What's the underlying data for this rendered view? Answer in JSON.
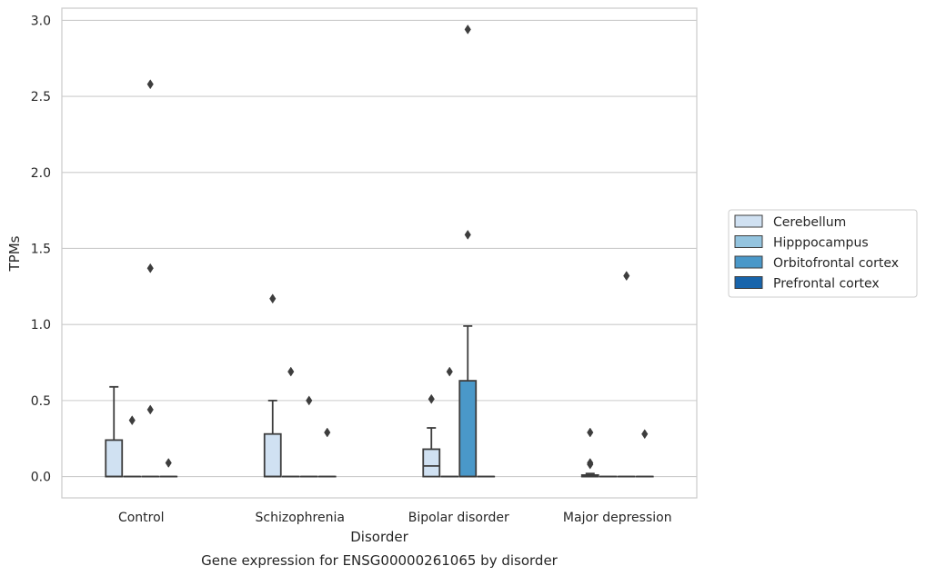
{
  "chart_data": {
    "type": "box",
    "title": "",
    "caption": "Gene expression for ENSG00000261065 by disorder",
    "xlabel": "Disorder",
    "ylabel": "TPMs",
    "ylim": [
      -0.14,
      3.08
    ],
    "yticks": [
      0.0,
      0.5,
      1.0,
      1.5,
      2.0,
      2.5,
      3.0
    ],
    "ytick_labels": [
      "0.0",
      "0.5",
      "1.0",
      "1.5",
      "2.0",
      "2.5",
      "3.0"
    ],
    "categories": [
      "Control",
      "Schizophrenia",
      "Bipolar disorder",
      "Major depression"
    ],
    "grid": "horizontal",
    "legend_position": "right",
    "series": [
      {
        "name": "Cerebellum",
        "color": "#d0e1f2",
        "boxes": [
          {
            "q1": 0.0,
            "median": 0.0,
            "q3": 0.24,
            "whislo": 0.0,
            "whishi": 0.59,
            "outliers": []
          },
          {
            "q1": 0.0,
            "median": 0.0,
            "q3": 0.28,
            "whislo": 0.0,
            "whishi": 0.5,
            "outliers": [
              1.17
            ]
          },
          {
            "q1": 0.0,
            "median": 0.07,
            "q3": 0.18,
            "whislo": 0.0,
            "whishi": 0.32,
            "outliers": [
              0.51
            ]
          },
          {
            "q1": 0.0,
            "median": 0.0,
            "q3": 0.01,
            "whislo": 0.0,
            "whishi": 0.02,
            "outliers": [
              0.08,
              0.09,
              0.29
            ]
          }
        ]
      },
      {
        "name": "Hipppocampus",
        "color": "#94c4df",
        "boxes": [
          {
            "q1": 0.0,
            "median": 0.0,
            "q3": 0.0,
            "whislo": 0.0,
            "whishi": 0.0,
            "outliers": [
              0.37
            ]
          },
          {
            "q1": 0.0,
            "median": 0.0,
            "q3": 0.0,
            "whislo": 0.0,
            "whishi": 0.0,
            "outliers": [
              0.69
            ]
          },
          {
            "q1": 0.0,
            "median": 0.0,
            "q3": 0.0,
            "whislo": 0.0,
            "whishi": 0.0,
            "outliers": [
              0.69
            ]
          },
          {
            "q1": 0.0,
            "median": 0.0,
            "q3": 0.0,
            "whislo": 0.0,
            "whishi": 0.0,
            "outliers": []
          }
        ]
      },
      {
        "name": "Orbitofrontal cortex",
        "color": "#4a98c9",
        "boxes": [
          {
            "q1": 0.0,
            "median": 0.0,
            "q3": 0.0,
            "whislo": 0.0,
            "whishi": 0.0,
            "outliers": [
              0.44,
              1.37,
              2.58
            ]
          },
          {
            "q1": 0.0,
            "median": 0.0,
            "q3": 0.0,
            "whislo": 0.0,
            "whishi": 0.0,
            "outliers": [
              0.5
            ]
          },
          {
            "q1": 0.0,
            "median": 0.0,
            "q3": 0.63,
            "whislo": 0.0,
            "whishi": 0.99,
            "outliers": [
              1.59,
              2.94
            ]
          },
          {
            "q1": 0.0,
            "median": 0.0,
            "q3": 0.0,
            "whislo": 0.0,
            "whishi": 0.0,
            "outliers": [
              1.32
            ]
          }
        ]
      },
      {
        "name": "Prefrontal cortex",
        "color": "#1764ab",
        "boxes": [
          {
            "q1": 0.0,
            "median": 0.0,
            "q3": 0.0,
            "whislo": 0.0,
            "whishi": 0.0,
            "outliers": [
              0.09
            ]
          },
          {
            "q1": 0.0,
            "median": 0.0,
            "q3": 0.0,
            "whislo": 0.0,
            "whishi": 0.0,
            "outliers": [
              0.29
            ]
          },
          {
            "q1": 0.0,
            "median": 0.0,
            "q3": 0.0,
            "whislo": 0.0,
            "whishi": 0.0,
            "outliers": []
          },
          {
            "q1": 0.0,
            "median": 0.0,
            "q3": 0.0,
            "whislo": 0.0,
            "whishi": 0.0,
            "outliers": [
              0.28
            ]
          }
        ]
      }
    ]
  }
}
